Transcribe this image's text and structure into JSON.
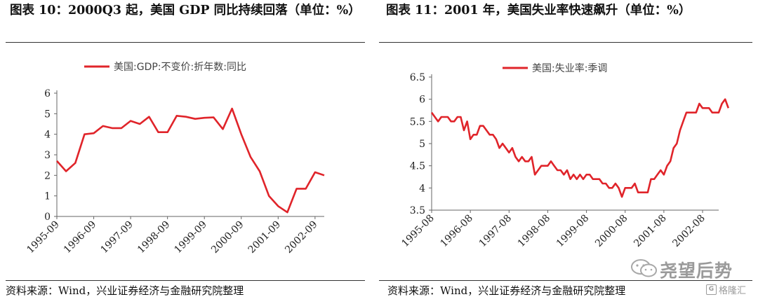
{
  "chart_data": [
    {
      "type": "line",
      "title": "图表 10：2000Q3 起，美国 GDP 同比持续回落（单位：%）",
      "source": "资料来源：Wind，兴业证券经济与金融研究院整理",
      "legend": {
        "placement": "top",
        "label": "美国:GDP:不变价:折年数:同比"
      },
      "ylim": [
        0,
        6
      ],
      "yticks": [
        "0",
        "1",
        "2",
        "3",
        "4",
        "5",
        "6"
      ],
      "xticks": [
        "1995-09",
        "1996-09",
        "1997-09",
        "1998-09",
        "1999-09",
        "2000-09",
        "2001-09",
        "2002-09"
      ],
      "x": [
        "1995-09",
        "1995-12",
        "1996-03",
        "1996-06",
        "1996-09",
        "1996-12",
        "1997-03",
        "1997-06",
        "1997-09",
        "1997-12",
        "1998-03",
        "1998-06",
        "1998-09",
        "1998-12",
        "1999-03",
        "1999-06",
        "1999-09",
        "1999-12",
        "2000-03",
        "2000-06",
        "2000-09",
        "2000-12",
        "2001-03",
        "2001-06",
        "2001-09",
        "2001-12",
        "2002-03",
        "2002-06",
        "2002-09",
        "2002-12"
      ],
      "series": [
        {
          "name": "美国:GDP:不变价:折年数:同比",
          "color": "#e0242a",
          "values": [
            2.7,
            2.2,
            2.6,
            4.0,
            4.05,
            4.4,
            4.3,
            4.3,
            4.65,
            4.5,
            4.85,
            4.1,
            4.1,
            4.9,
            4.85,
            4.75,
            4.8,
            4.82,
            4.25,
            5.25,
            4.0,
            2.9,
            2.2,
            1.0,
            0.5,
            0.2,
            1.35,
            1.35,
            2.15,
            2.0
          ]
        }
      ],
      "grid": false
    },
    {
      "type": "line",
      "title": "图表 11：2001 年，美国失业率快速飙升（单位：%）",
      "source": "资料来源：Wind，兴业证券经济与金融研究院整理",
      "legend": {
        "placement": "top",
        "label": "美国:失业率:季调"
      },
      "ylim": [
        3.5,
        6.5
      ],
      "yticks": [
        "3.5",
        "4",
        "4.5",
        "5",
        "5.5",
        "6",
        "6.5"
      ],
      "xticks": [
        "1995-08",
        "1996-08",
        "1997-08",
        "1998-08",
        "1999-08",
        "2000-08",
        "2001-08",
        "2002-08"
      ],
      "x_start": "1995-08",
      "x_end": "2003-01",
      "series": [
        {
          "name": "美国:失业率:季调",
          "color": "#e0242a",
          "values": [
            5.7,
            5.6,
            5.5,
            5.6,
            5.6,
            5.6,
            5.5,
            5.5,
            5.6,
            5.6,
            5.3,
            5.5,
            5.1,
            5.2,
            5.2,
            5.4,
            5.4,
            5.3,
            5.2,
            5.2,
            5.1,
            4.9,
            5.0,
            4.9,
            4.8,
            4.9,
            4.7,
            4.6,
            4.7,
            4.6,
            4.6,
            4.7,
            4.3,
            4.4,
            4.5,
            4.5,
            4.5,
            4.6,
            4.5,
            4.4,
            4.4,
            4.3,
            4.4,
            4.2,
            4.3,
            4.2,
            4.3,
            4.2,
            4.3,
            4.3,
            4.2,
            4.2,
            4.2,
            4.1,
            4.1,
            4.0,
            4.0,
            4.1,
            4.0,
            3.8,
            4.0,
            4.0,
            4.0,
            4.1,
            3.9,
            3.9,
            3.9,
            3.9,
            4.2,
            4.2,
            4.3,
            4.4,
            4.3,
            4.5,
            4.6,
            4.9,
            5.0,
            5.3,
            5.5,
            5.7,
            5.7,
            5.7,
            5.7,
            5.9,
            5.8,
            5.8,
            5.8,
            5.7,
            5.7,
            5.7,
            5.9,
            6.0,
            5.8
          ]
        }
      ],
      "grid": false
    }
  ],
  "watermark": {
    "name": "尧望后势",
    "logo": "格隆汇",
    "logo_letter": "G",
    "icon": "wechat-icon"
  }
}
